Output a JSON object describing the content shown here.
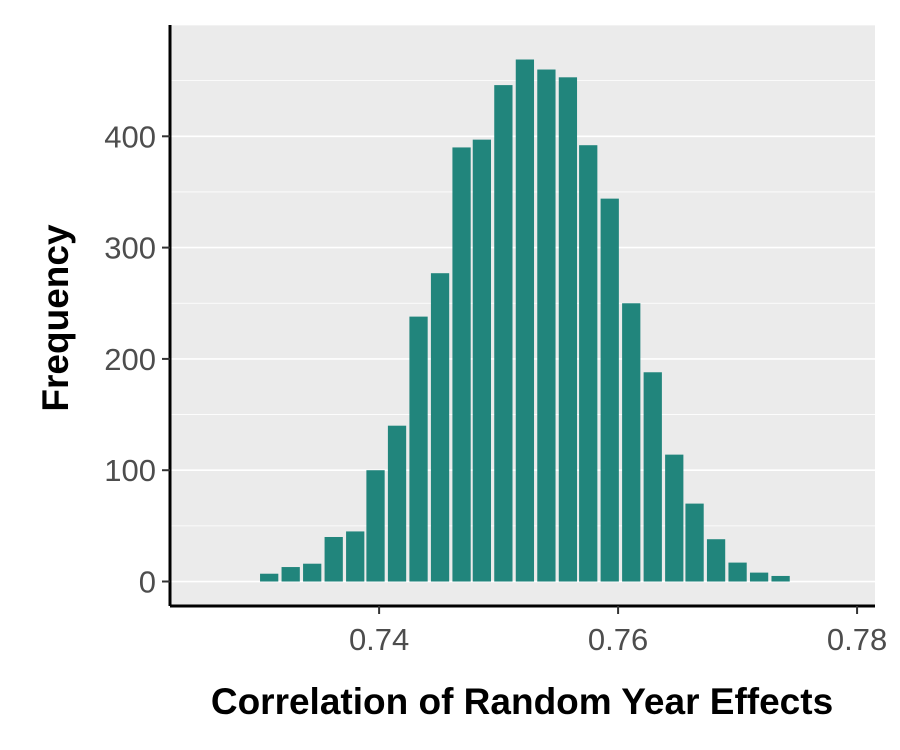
{
  "chart_data": {
    "type": "bar",
    "title": "",
    "xlabel": "Correlation of Random Year Effects",
    "ylabel": "Frequency",
    "x_ticks": [
      "0.74",
      "0.76",
      "0.78"
    ],
    "y_ticks": [
      "0",
      "100",
      "200",
      "300",
      "400"
    ],
    "xlim": [
      0.7225,
      0.7815
    ],
    "ylim": [
      -22,
      500
    ],
    "bin_width": 0.00178,
    "grid": true,
    "series": [
      {
        "x": [
          0.7308,
          0.7326,
          0.7344,
          0.7362,
          0.738,
          0.7397,
          0.7415,
          0.7433,
          0.7451,
          0.7469,
          0.7486,
          0.7504,
          0.7522,
          0.754,
          0.7558,
          0.7575,
          0.7593,
          0.7611,
          0.7629,
          0.7647,
          0.7664,
          0.7682,
          0.77,
          0.7718,
          0.7736,
          0.7753
        ],
        "values": [
          7,
          13,
          16,
          40,
          45,
          100,
          140,
          238,
          277,
          390,
          397,
          446,
          469,
          460,
          453,
          392,
          344,
          250,
          188,
          114,
          70,
          38,
          17,
          8,
          5,
          0
        ]
      }
    ],
    "colors": {
      "bar": "#21857c",
      "panel": "#ebebeb",
      "grid": "#ffffff",
      "axis": "#000000"
    }
  }
}
